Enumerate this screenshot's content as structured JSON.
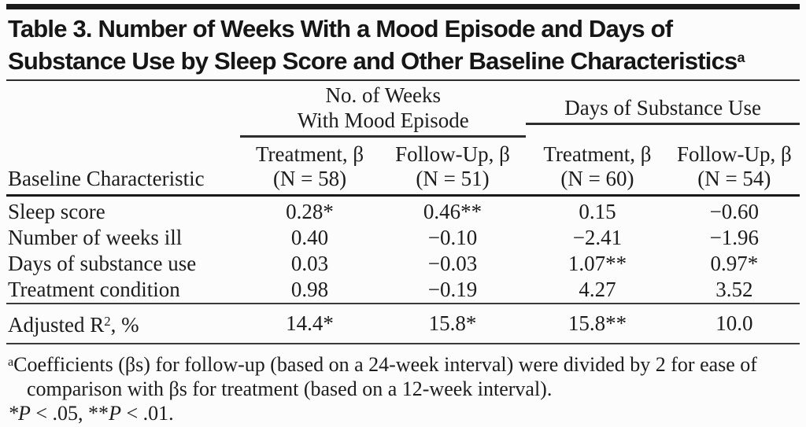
{
  "colors": {
    "bg": "#fcfcfc",
    "text": "#1c1c1c",
    "rule-heavy": "#1a1a1a",
    "rule-mid": "#2e2e2e",
    "rule-thin": "#3a3a3a"
  },
  "page": {
    "title_line1": "Table 3. Number of Weeks With a Mood Episode and Days of",
    "title_line2": "Substance Use by Sleep Score and Other Baseline Characteristics",
    "title_footnote_marker": "a"
  },
  "table": {
    "stub_header": "Baseline Characteristic",
    "spanners": [
      {
        "line1": "No. of Weeks",
        "line2": "With Mood Episode"
      },
      {
        "line1": "",
        "line2": "Days of Substance Use"
      }
    ],
    "columns": [
      {
        "line1": "Treatment, β",
        "line2": "(N = 58)"
      },
      {
        "line1": "Follow-Up, β",
        "line2": "(N = 51)"
      },
      {
        "line1": "Treatment, β",
        "line2": "(N = 60)"
      },
      {
        "line1": "Follow-Up, β",
        "line2": "(N = 54)"
      }
    ],
    "rows": [
      {
        "label": "Sleep score",
        "values": [
          "0.28*",
          "0.46**",
          "0.15",
          "−0.60"
        ]
      },
      {
        "label": "Number of weeks ill",
        "values": [
          "0.40",
          "−0.10",
          "−2.41",
          "−1.96"
        ]
      },
      {
        "label": "Days of substance use",
        "values": [
          "0.03",
          "−0.03",
          "1.07**",
          "0.97*"
        ]
      },
      {
        "label": "Treatment condition",
        "values": [
          "0.98",
          "−0.19",
          "4.27",
          "3.52"
        ]
      }
    ],
    "summary_row": {
      "label_base": "Adjusted R",
      "label_sup": "2",
      "label_rest": ", %",
      "values": [
        "14.4*",
        "15.8*",
        "15.8**",
        "10.0"
      ]
    }
  },
  "footnotes": {
    "a_marker": "a",
    "a_text": "Coefficients (βs) for follow-up (based on a 24-week interval) were divided by 2 for ease of comparison with βs for treatment (based on a 12-week interval).",
    "sig_star1": "*",
    "sig_p1": "P",
    "sig_seg1": " < .05, **",
    "sig_p2": "P",
    "sig_seg2": " < .01."
  }
}
